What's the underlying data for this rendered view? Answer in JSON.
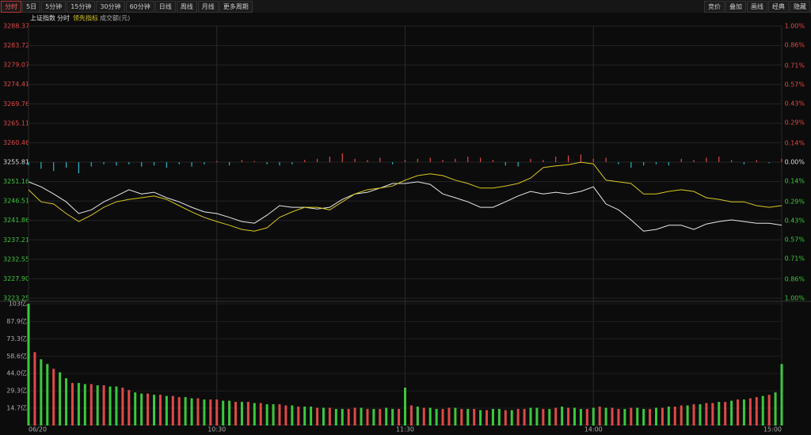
{
  "toolbar": {
    "periods": [
      "分时",
      "5日",
      "5分钟",
      "15分钟",
      "30分钟",
      "60分钟",
      "日线",
      "周线",
      "月线",
      "更多周期"
    ],
    "tools": [
      "竞价",
      "叠加",
      "画线",
      "经典",
      "隐藏"
    ]
  },
  "legend": {
    "index": "上证指数",
    "mode": "分时",
    "lead": "领先指标",
    "volume": "成交额(元)"
  },
  "chart_data": [
    {
      "type": "line",
      "xlim": [
        0,
        240
      ],
      "xticks": [
        {
          "value": 0,
          "label": "06/20"
        },
        {
          "value": 60,
          "label": "10:30"
        },
        {
          "value": 120,
          "label": "11:30"
        },
        {
          "value": 180,
          "label": "14:00"
        },
        {
          "value": 240,
          "label": "15:00"
        }
      ],
      "ylim": [
        3223.25,
        3288.37
      ],
      "yticks": [
        3288.37,
        3283.72,
        3279.07,
        3274.41,
        3269.76,
        3265.11,
        3260.46,
        3255.81,
        3251.16,
        3246.51,
        3241.86,
        3237.21,
        3232.55,
        {
          "value": 3227.9,
          "label": "3227.90"
        },
        3223.25
      ],
      "y2lim": [
        -1,
        1
      ],
      "y2ticks": [
        {
          "value": 1,
          "label": "1.00%"
        },
        {
          "value": 0.86,
          "label": "0.86%"
        },
        {
          "value": 0.71,
          "label": "0.71%"
        },
        {
          "value": 0.57,
          "label": "0.57%"
        },
        {
          "value": 0.43,
          "label": "0.43%"
        },
        {
          "value": 0.29,
          "label": "0.29%"
        },
        {
          "value": 0.14,
          "label": "0.14%"
        },
        {
          "value": 0,
          "label": "0.00%"
        },
        {
          "value": -0.14,
          "label": "0.14%"
        },
        {
          "value": -0.29,
          "label": "0.29%"
        },
        {
          "value": -0.43,
          "label": "0.43%"
        },
        {
          "value": -0.57,
          "label": "0.57%"
        },
        {
          "value": -0.71,
          "label": "0.71%"
        },
        {
          "value": -0.86,
          "label": "0.86%"
        },
        {
          "value": -1,
          "label": "1.00%"
        }
      ],
      "grid": true,
      "up_color": "#e04848",
      "down_color": "#3cc83c",
      "series": [
        {
          "name": "上证指数",
          "color": "#e8e8e8",
          "values": [
            3251.1,
            3249.9,
            3248.2,
            3246.3,
            3243.5,
            3244.4,
            3246.3,
            3247.7,
            3249.2,
            3248.2,
            3248.6,
            3247.3,
            3246.3,
            3245.0,
            3243.9,
            3243.5,
            3242.6,
            3241.6,
            3241.2,
            3243.1,
            3245.4,
            3245.0,
            3245.0,
            3244.6,
            3245.0,
            3246.9,
            3248.2,
            3248.6,
            3249.6,
            3250.7,
            3250.7,
            3251.1,
            3250.5,
            3248.2,
            3247.3,
            3246.3,
            3245.0,
            3245.0,
            3246.3,
            3247.7,
            3248.8,
            3248.2,
            3248.6,
            3248.2,
            3248.8,
            3249.9,
            3245.8,
            3244.4,
            3242.0,
            3239.3,
            3239.7,
            3240.7,
            3240.7,
            3239.7,
            3241.0,
            3241.6,
            3242.0,
            3241.6,
            3241.2,
            3241.2,
            3240.7
          ]
        },
        {
          "name": "领先指标",
          "color": "#d8c820",
          "values": [
            3249.2,
            3246.3,
            3245.8,
            3243.5,
            3241.6,
            3243.1,
            3245.0,
            3246.3,
            3246.9,
            3247.3,
            3247.7,
            3246.9,
            3245.4,
            3243.9,
            3242.6,
            3241.6,
            3240.7,
            3239.7,
            3239.3,
            3240.1,
            3242.6,
            3243.9,
            3245.0,
            3245.0,
            3244.4,
            3246.3,
            3248.2,
            3249.2,
            3249.6,
            3250.1,
            3251.5,
            3252.6,
            3253.0,
            3252.6,
            3251.5,
            3250.7,
            3249.6,
            3249.6,
            3250.1,
            3250.7,
            3252.0,
            3254.5,
            3254.9,
            3255.2,
            3255.8,
            3255.4,
            3251.5,
            3251.1,
            3250.7,
            3248.2,
            3248.2,
            3248.8,
            3249.2,
            3248.8,
            3247.3,
            3246.9,
            3246.3,
            3246.3,
            3245.4,
            3245.0,
            3245.4
          ]
        }
      ],
      "indicator": {
        "ylim": [
          -10,
          10
        ],
        "up_color": "#e04848",
        "down_color": "#20b8c8",
        "values": [
          -3,
          -6,
          -8,
          -5,
          -10,
          -4,
          -2,
          -3,
          -2,
          -4,
          -3,
          -5,
          -2,
          -4,
          -2,
          1,
          -3,
          2,
          1,
          -2,
          -3,
          -2,
          2,
          3,
          5,
          8,
          3,
          2,
          4,
          -2,
          2,
          3,
          4,
          2,
          3,
          5,
          4,
          2,
          -3,
          -4,
          3,
          2,
          5,
          6,
          7,
          3,
          4,
          -2,
          -5,
          -3,
          -2,
          -3,
          3,
          2,
          4,
          5,
          2,
          -2,
          2,
          -1,
          3
        ]
      }
    },
    {
      "type": "bar",
      "ylim": [
        0,
        103
      ],
      "yticks": [
        {
          "value": 103,
          "label": "103亿"
        },
        {
          "value": 87.9,
          "label": "87.9亿"
        },
        {
          "value": 73.3,
          "label": "73.3亿"
        },
        {
          "value": 58.6,
          "label": "58.6亿"
        },
        {
          "value": 44,
          "label": "44.0亿"
        },
        {
          "value": 29.3,
          "label": "29.3亿"
        },
        {
          "value": 14.7,
          "label": "14.7亿"
        }
      ],
      "up_color": "#e04848",
      "down_color": "#3cc83c",
      "direction": "GRGGRGGRGGRGRGGRRGGRGRGRRGGRGRRGGRGRGRGGRRGRGGRGRGGRRGRGRGGRGRGRGGRRGRGRGRGGRGRRGGRGRGRGGRGRGRRGRGGRGRGRRGRGRRGRGRGRRGRGG",
      "values": [
        103,
        62,
        56,
        52,
        48,
        45,
        40,
        36,
        36,
        35,
        35,
        34,
        34,
        33,
        33,
        32,
        30,
        28,
        27,
        27,
        26,
        26,
        25,
        25,
        24,
        24,
        23,
        23,
        22,
        22,
        22,
        21,
        21,
        20,
        20,
        20,
        19,
        19,
        18,
        18,
        18,
        17,
        17,
        16,
        16,
        16,
        15,
        15,
        15,
        14,
        14,
        14,
        15,
        15,
        14,
        14,
        14,
        15,
        14,
        14,
        32,
        17,
        16,
        15,
        15,
        14,
        14,
        15,
        15,
        14,
        14,
        14,
        13,
        13,
        14,
        14,
        13,
        13,
        14,
        14,
        15,
        15,
        14,
        14,
        15,
        16,
        15,
        15,
        14,
        14,
        15,
        16,
        15,
        15,
        14,
        14,
        15,
        15,
        14,
        14,
        15,
        15,
        16,
        16,
        17,
        17,
        18,
        18,
        19,
        19,
        20,
        20,
        21,
        22,
        22,
        23,
        24,
        25,
        26,
        28,
        52
      ]
    }
  ]
}
